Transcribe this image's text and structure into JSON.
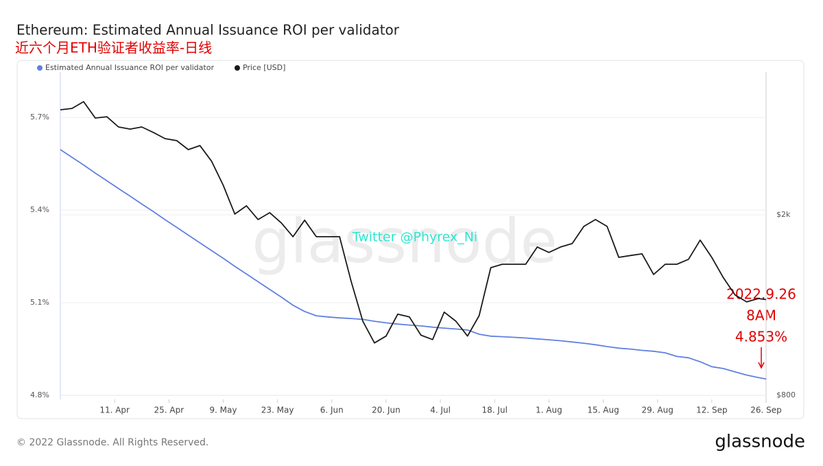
{
  "chart_data": {
    "type": "line",
    "title": "Ethereum: Estimated Annual Issuance ROI per validator",
    "subtitle": "近六个月ETH验证者收益率-日线",
    "watermark": "glassnode",
    "annotations": [
      "Twitter @Phyrex_Ni",
      "2022.9.26",
      "8AM",
      "4.853%"
    ],
    "x": [
      "03-28",
      "03-31",
      "04-03",
      "04-06",
      "04-09",
      "04-12",
      "04-15",
      "04-18",
      "04-21",
      "04-24",
      "04-27",
      "04-30",
      "05-03",
      "05-06",
      "05-09",
      "05-12",
      "05-15",
      "05-18",
      "05-21",
      "05-24",
      "05-27",
      "05-30",
      "06-02",
      "06-05",
      "06-08",
      "06-11",
      "06-14",
      "06-17",
      "06-20",
      "06-23",
      "06-26",
      "06-29",
      "07-02",
      "07-05",
      "07-08",
      "07-11",
      "07-14",
      "07-17",
      "07-20",
      "07-23",
      "07-26",
      "07-29",
      "08-01",
      "08-04",
      "08-07",
      "08-10",
      "08-13",
      "08-16",
      "08-19",
      "08-22",
      "08-25",
      "08-28",
      "08-31",
      "09-03",
      "09-06",
      "09-09",
      "09-12",
      "09-15",
      "09-18",
      "09-21",
      "09-24",
      "09-26"
    ],
    "series": [
      {
        "name": "Estimated Annual Issuance ROI per validator",
        "color": "#6080e0",
        "values": [
          5.596,
          5.571,
          5.546,
          5.52,
          5.495,
          5.47,
          5.445,
          5.42,
          5.395,
          5.369,
          5.344,
          5.319,
          5.294,
          5.269,
          5.244,
          5.218,
          5.193,
          5.168,
          5.143,
          5.118,
          5.092,
          5.072,
          5.058,
          5.054,
          5.051,
          5.049,
          5.046,
          5.04,
          5.035,
          5.031,
          5.028,
          5.025,
          5.021,
          5.018,
          5.015,
          5.012,
          4.998,
          4.992,
          4.99,
          4.988,
          4.986,
          4.983,
          4.98,
          4.977,
          4.973,
          4.969,
          4.964,
          4.958,
          4.953,
          4.95,
          4.946,
          4.943,
          4.938,
          4.926,
          4.922,
          4.909,
          4.893,
          4.887,
          4.876,
          4.866,
          4.858,
          4.853
        ]
      },
      {
        "name": "Price [USD]",
        "color": "#1a1a1a",
        "axis": "y2",
        "values": [
          3408,
          3432,
          3552,
          3268,
          3290,
          3124,
          3090,
          3124,
          3037,
          2944,
          2914,
          2784,
          2842,
          2625,
          2323,
          2007,
          2093,
          1952,
          2021,
          1918,
          1789,
          1946,
          1789,
          1789,
          1789,
          1426,
          1165,
          1043,
          1080,
          1207,
          1191,
          1085,
          1061,
          1220,
          1165,
          1080,
          1198,
          1529,
          1556,
          1556,
          1556,
          1698,
          1652,
          1698,
          1728,
          1885,
          1952,
          1885,
          1611,
          1626,
          1640,
          1477,
          1556,
          1556,
          1595,
          1758,
          1611,
          1452,
          1331,
          1285,
          1307,
          1300
        ]
      }
    ],
    "xlim": [
      "03-28",
      "09-26"
    ],
    "xticks": [
      {
        "value": "04-11",
        "label": "11. Apr"
      },
      {
        "value": "04-25",
        "label": "25. Apr"
      },
      {
        "value": "05-09",
        "label": "9. May"
      },
      {
        "value": "05-23",
        "label": "23. May"
      },
      {
        "value": "06-06",
        "label": "6. Jun"
      },
      {
        "value": "06-20",
        "label": "20. Jun"
      },
      {
        "value": "07-04",
        "label": "4. Jul"
      },
      {
        "value": "07-18",
        "label": "18. Jul"
      },
      {
        "value": "08-01",
        "label": "1. Aug"
      },
      {
        "value": "08-15",
        "label": "15. Aug"
      },
      {
        "value": "08-29",
        "label": "29. Aug"
      },
      {
        "value": "09-12",
        "label": "12. Sep"
      },
      {
        "value": "09-26",
        "label": "26. Sep"
      }
    ],
    "ylim": [
      4.787,
      5.847
    ],
    "yticks": [
      {
        "value": 4.8,
        "label": "4.8%"
      },
      {
        "value": 5.1,
        "label": "5.1%"
      },
      {
        "value": 5.4,
        "label": "5.4%"
      },
      {
        "value": 5.7,
        "label": "5.7%"
      }
    ],
    "y2lim": [
      783,
      4128
    ],
    "y2log": true,
    "y2ticks": [
      {
        "value": 800,
        "label": "$800"
      },
      {
        "value": 2000,
        "label": "$2k"
      }
    ],
    "grid": true
  },
  "footer": "© 2022 Glassnode. All Rights Reserved.",
  "logo": "glassnode"
}
